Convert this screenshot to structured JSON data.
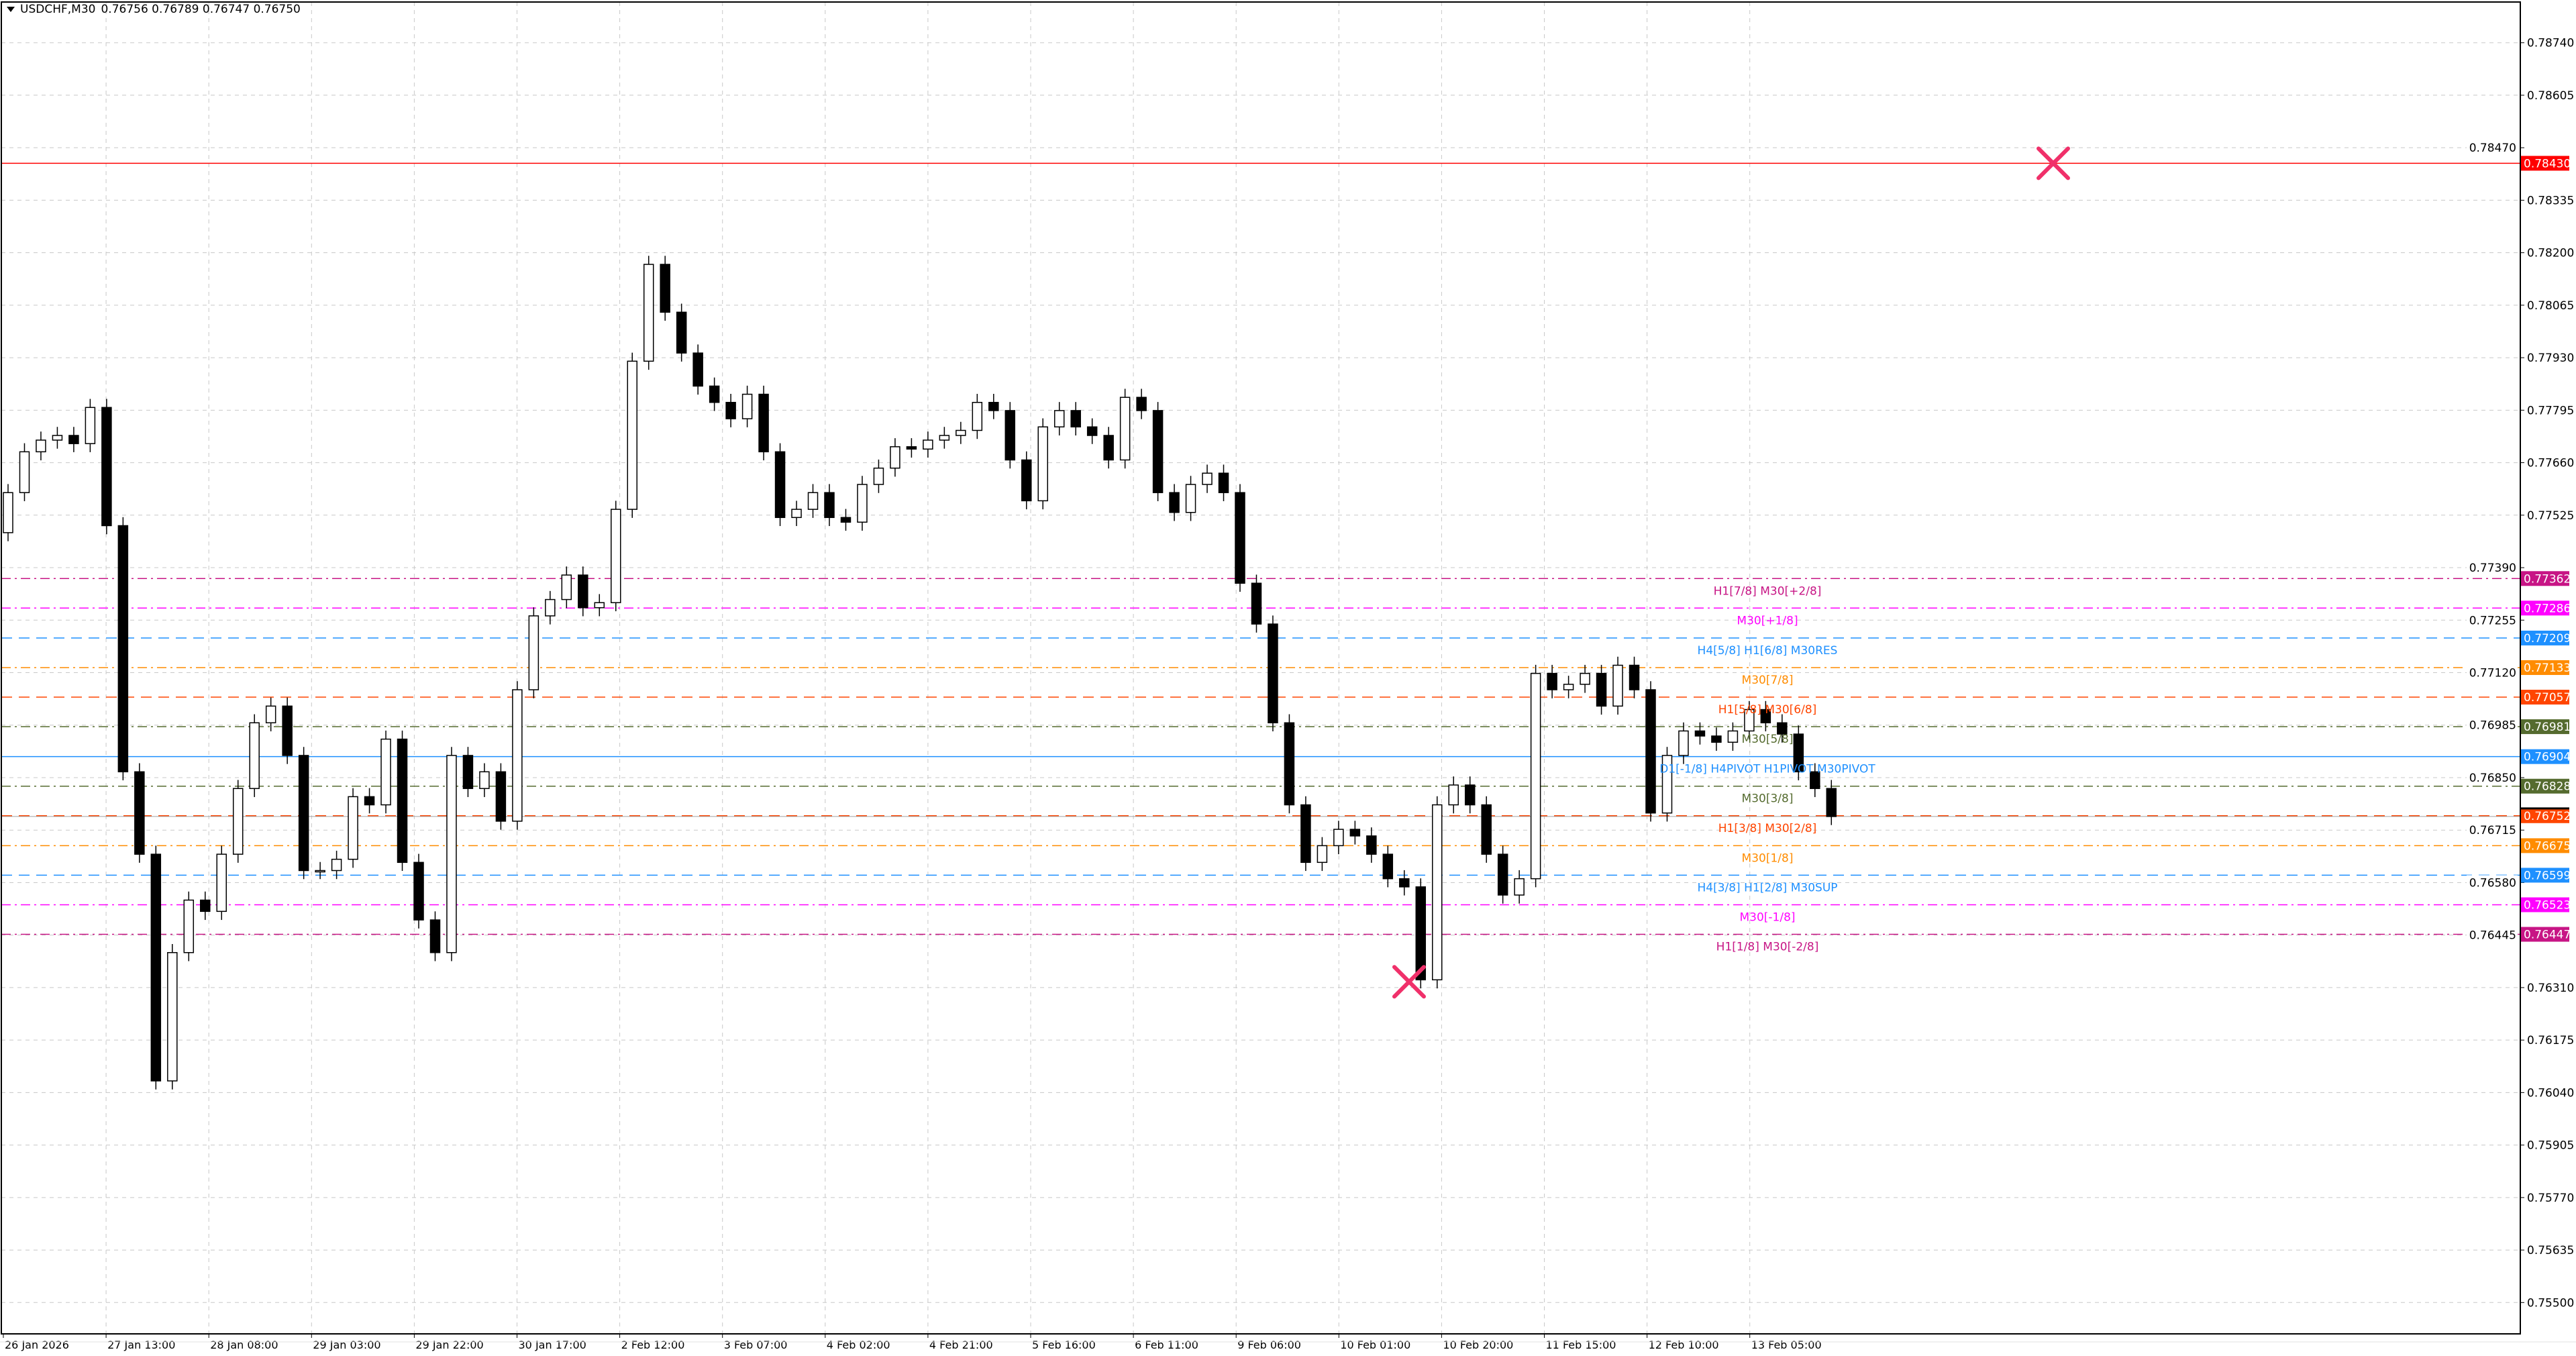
{
  "header": {
    "symbol_timeframe": "USDCHF,M30",
    "ohlc": "0.76756 0.76789 0.76747 0.76750"
  },
  "colors": {
    "background": "#ffffff",
    "grid": "#c8c8c8",
    "bull_fill": "#ffffff",
    "bear_fill": "#000000",
    "marker": "#f0306a",
    "alert_line": "#ff0000"
  },
  "chart_data": {
    "type": "candlestick",
    "symbol": "USDCHF",
    "timeframe": "M30",
    "ylim": [
      0.7545,
      0.788
    ],
    "grid": true,
    "y_ticks": [
      "0.78740",
      "0.78605",
      "0.78470",
      "0.78335",
      "0.78200",
      "0.78065",
      "0.77930",
      "0.77795",
      "0.77660",
      "0.77525",
      "0.77390",
      "0.77255",
      "0.77120",
      "0.76985",
      "0.76850",
      "0.76715",
      "0.76580",
      "0.76445",
      "0.76310",
      "0.76175",
      "0.76040",
      "0.75905",
      "0.75770",
      "0.75635",
      "0.75500"
    ],
    "x_ticks": [
      "26 Jan 2026",
      "27 Jan 13:00",
      "28 Jan 08:00",
      "29 Jan 03:00",
      "29 Jan 22:00",
      "30 Jan 17:00",
      "2 Feb 12:00",
      "3 Feb 07:00",
      "4 Feb 02:00",
      "4 Feb 21:00",
      "5 Feb 16:00",
      "6 Feb 11:00",
      "9 Feb 06:00",
      "10 Feb 01:00",
      "10 Feb 20:00",
      "11 Feb 15:00",
      "12 Feb 10:00",
      "13 Feb 05:00"
    ],
    "first_open": 0.7748,
    "closes": [
      0.77583,
      0.77688,
      0.77718,
      0.7773,
      0.77709,
      0.77802,
      0.77498,
      0.76865,
      0.76653,
      0.7607,
      0.764,
      0.76535,
      0.76506,
      0.76653,
      0.76822,
      0.76991,
      0.77034,
      0.76907,
      0.76611,
      0.76611,
      0.7664,
      0.76801,
      0.7678,
      0.76949,
      0.76632,
      0.76484,
      0.764,
      0.76907,
      0.76822,
      0.76865,
      0.76738,
      0.77076,
      0.77266,
      0.77308,
      0.77371,
      0.77287,
      0.773,
      0.7754,
      0.77921,
      0.7817,
      0.78047,
      0.77942,
      0.77857,
      0.77815,
      0.77773,
      0.77836,
      0.77688,
      0.77519,
      0.7754,
      0.77583,
      0.77519,
      0.77507,
      0.77604,
      0.77646,
      0.77701,
      0.77695,
      0.77718,
      0.7773,
      0.77743,
      0.77815,
      0.77794,
      0.77667,
      0.77562,
      0.77752,
      0.77794,
      0.77752,
      0.7773,
      0.77667,
      0.77828,
      0.77794,
      0.77583,
      0.77532,
      0.77604,
      0.77633,
      0.77583,
      0.7735,
      0.77245,
      0.76991,
      0.7678,
      0.76632,
      0.76675,
      0.76717,
      0.767,
      0.76653,
      0.7659,
      0.76569,
      0.7633,
      0.7678,
      0.76831,
      0.7678,
      0.76653,
      0.76548,
      0.7659,
      0.77118,
      0.77076,
      0.7709,
      0.77118,
      0.77034,
      0.77139,
      0.77076,
      0.76759,
      0.76907,
      0.7697,
      0.76957,
      0.76941,
      0.7697,
      0.77025,
      0.76991,
      0.76962,
      0.76865,
      0.76822,
      0.7675
    ],
    "levels": [
      {
        "price": 0.77362,
        "price_label": "0.77362",
        "label": "H1[7/8] M30[+2/8]",
        "color": "#c71585",
        "style": "dashdot"
      },
      {
        "price": 0.77286,
        "price_label": "0.77286",
        "label": "M30[+1/8]",
        "color": "#ff00ff",
        "style": "dashdot"
      },
      {
        "price": 0.77209,
        "price_label": "0.77209",
        "label": "H4[5/8] H1[6/8] M30RES",
        "color": "#1e90ff",
        "style": "dash"
      },
      {
        "price": 0.77133,
        "price_label": "0.77133",
        "label": "M30[7/8]",
        "color": "#ff8c00",
        "style": "dashdot"
      },
      {
        "price": 0.77057,
        "price_label": "0.77057",
        "label": "H1[5/8] M30[6/8]",
        "color": "#ff4500",
        "style": "dash"
      },
      {
        "price": 0.76981,
        "price_label": "0.76981",
        "label": "M30[5/8]",
        "color": "#556b2f",
        "style": "dashdot"
      },
      {
        "price": 0.76904,
        "price_label": "0.76904",
        "label": "D1[-1/8] H4PIVOT H1PIVOT M30PIVOT",
        "color": "#1e90ff",
        "style": "solid"
      },
      {
        "price": 0.76828,
        "price_label": "0.76828",
        "label": "M30[3/8]",
        "color": "#556b2f",
        "style": "dashdot"
      },
      {
        "price": 0.76752,
        "price_label": "0.76752",
        "label": "H1[3/8] M30[2/8]",
        "color": "#ff4500",
        "style": "dash"
      },
      {
        "price": 0.76675,
        "price_label": "0.76675",
        "label": "M30[1/8]",
        "color": "#ff8c00",
        "style": "dashdot"
      },
      {
        "price": 0.76599,
        "price_label": "0.76599",
        "label": "H4[3/8] H1[2/8] M30SUP",
        "color": "#1e90ff",
        "style": "dash"
      },
      {
        "price": 0.76523,
        "price_label": "0.76523",
        "label": "M30[-1/8]",
        "color": "#ff00ff",
        "style": "dashdot"
      },
      {
        "price": 0.76447,
        "price_label": "0.76447",
        "label": "H1[1/8] M30[-2/8]",
        "color": "#c71585",
        "style": "dashdot"
      }
    ],
    "alert_line": {
      "price": 0.7843,
      "price_label": "0.78430",
      "color": "#ff0000"
    },
    "current_price": 0.7675,
    "markers": [
      {
        "icon": "x-cross-icon",
        "price": 0.7843,
        "time": "12 Feb 23:00"
      },
      {
        "icon": "x-cross-icon",
        "price": 0.76325,
        "time": "10 Feb 06:00"
      }
    ]
  }
}
